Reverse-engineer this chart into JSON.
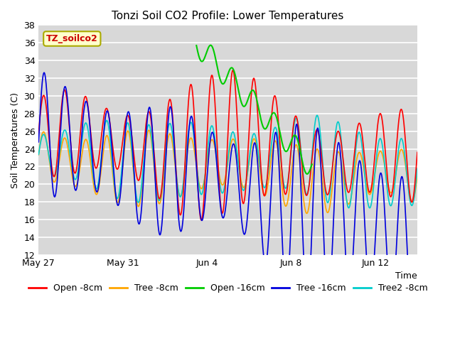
{
  "title": "Tonzi Soil CO2 Profile: Lower Temperatures",
  "xlabel": "Time",
  "ylabel": "Soil Temperatures (C)",
  "ylim": [
    12,
    38
  ],
  "yticks": [
    12,
    14,
    16,
    18,
    20,
    22,
    24,
    26,
    28,
    30,
    32,
    34,
    36,
    38
  ],
  "xtick_labels": [
    "May 27",
    "May 31",
    "Jun 4",
    "Jun 8",
    "Jun 12"
  ],
  "xtick_positions": [
    0,
    4,
    8,
    12,
    16
  ],
  "annotation_text": "TZ_soilco2",
  "background_color": "#d8d8d8",
  "grid_color": "#ffffff",
  "series_colors": {
    "Open -8cm": "#ff0000",
    "Tree -8cm": "#ffa500",
    "Open -16cm": "#00cc00",
    "Tree -16cm": "#0000dd",
    "Tree2 -8cm": "#00cccc"
  }
}
